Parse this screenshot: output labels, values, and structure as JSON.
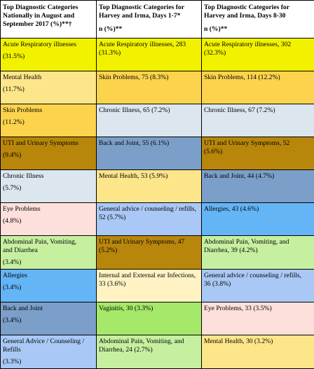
{
  "headers": {
    "col1": [
      "Top Diagnostic Categories",
      "Nationally in August and",
      "September 2017 (%)**†"
    ],
    "col2": [
      "Top Diagnostic Categories for",
      "Harvey and Irma, Days 1-7*",
      "n (%)**"
    ],
    "col3": [
      "Top Diagnostic Categories for",
      "Harvey and Irma, Days 8-30",
      "n (%)**"
    ]
  },
  "rows": [
    {
      "c1": {
        "label": "Acute Respiratory illnesses",
        "pct": "(31.5%)",
        "color": "#f2f200"
      },
      "c2": {
        "text": "Acute Respiratory illnesses, 283",
        "text2": "(31.3%)",
        "color": "#f2f200"
      },
      "c3": {
        "text": "Acute Respiratory illnesses, 302",
        "text2": "(32.3%)",
        "color": "#f2f200"
      }
    },
    {
      "c1": {
        "label": "Mental Health",
        "pct": "(11.7%)",
        "color": "#fde68a"
      },
      "c2": {
        "text": "Skin Problems, 75 (8.3%)",
        "text2": "",
        "color": "#fcd34d"
      },
      "c3": {
        "text": "Skin Problems, 114 (12.2%)",
        "text2": "",
        "color": "#fcd34d"
      }
    },
    {
      "c1": {
        "label": "Skin Problems",
        "pct": "(11.2%)",
        "color": "#fcd34d"
      },
      "c2": {
        "text": "Chronic Illness, 65 (7.2%)",
        "text2": "",
        "color": "#dbe6ee"
      },
      "c3": {
        "text": "Chronic Illness, 67 (7.2%)",
        "text2": "",
        "color": "#dbe6ee"
      }
    },
    {
      "c1": {
        "label": "UTI and Urinary Symptoms",
        "pct": "(9.4%)",
        "color": "#b8860b"
      },
      "c2": {
        "text": "Back and Joint, 55 (6.1%)",
        "text2": "",
        "color": "#7b9fc8"
      },
      "c3": {
        "text": "UTI and Urinary Symptoms, 52",
        "text2": "(5.6%)",
        "color": "#b8860b"
      }
    },
    {
      "c1": {
        "label": "Chronic Illness",
        "pct": "(5.7%)",
        "color": "#dbe6ee"
      },
      "c2": {
        "text": "Mental Health, 53 (5.9%)",
        "text2": "",
        "color": "#fde68a"
      },
      "c3": {
        "text": "Back and Joint, 44 (4.7%)",
        "text2": "",
        "color": "#7b9fc8"
      }
    },
    {
      "c1": {
        "label": "Eye Problems",
        "pct": "(4.8%)",
        "color": "#fde0dc"
      },
      "c2": {
        "text": "General advice / counseling / refills,",
        "text2": "52 (5.7%)",
        "color": "#a9c8f5"
      },
      "c3": {
        "text": "Allergies, 43 (4.6%)",
        "text2": "",
        "color": "#64b5f6"
      }
    },
    {
      "c1": {
        "label": "Abdominal Pain, Vomiting,",
        "label2": "and Diarrhea",
        "pct": "(3.4%)",
        "color": "#c6f0a0"
      },
      "c2": {
        "text": "UTI and Urinary Symptoms, 47",
        "text2": "(5.2%)",
        "color": "#b8860b"
      },
      "c3": {
        "text": "Abdominal Pain, Vomiting, and",
        "text2": "Diarrhea, 39 (4.2%)",
        "color": "#c6f0a0"
      }
    },
    {
      "c1": {
        "label": "Allergies",
        "pct": "(3.4%)",
        "color": "#64b5f6"
      },
      "c2": {
        "text": "Internal and External ear Infections,",
        "text2": "33 (3.6%)",
        "color": "#fff3c4"
      },
      "c3": {
        "text": "General advice / counseling / refills,",
        "text2": "36 (3.8%)",
        "color": "#a9c8f5"
      }
    },
    {
      "c1": {
        "label": "Back and Joint",
        "pct": " (3.4%)",
        "color": "#7b9fc8"
      },
      "c2": {
        "text": "Vaginitis, 30 (3.3%)",
        "text2": "",
        "color": "#a6e86a"
      },
      "c3": {
        "text": "Eye Problems, 33 (3.5%)",
        "text2": "",
        "color": "#fde0dc"
      }
    },
    {
      "c1": {
        "label": "General Advice / Counseling /",
        "label2": "Refills",
        "pct": "(3.3%)",
        "color": "#a9c8f5"
      },
      "c2": {
        "text": "Abdominal Pain, Vomiting, and",
        "text2": "Diarrhea, 24 (2.7%)",
        "color": "#c6f0a0"
      },
      "c3": {
        "text": "Mental Health, 30 (3.2%)",
        "text2": "",
        "color": "#fde68a"
      }
    }
  ]
}
